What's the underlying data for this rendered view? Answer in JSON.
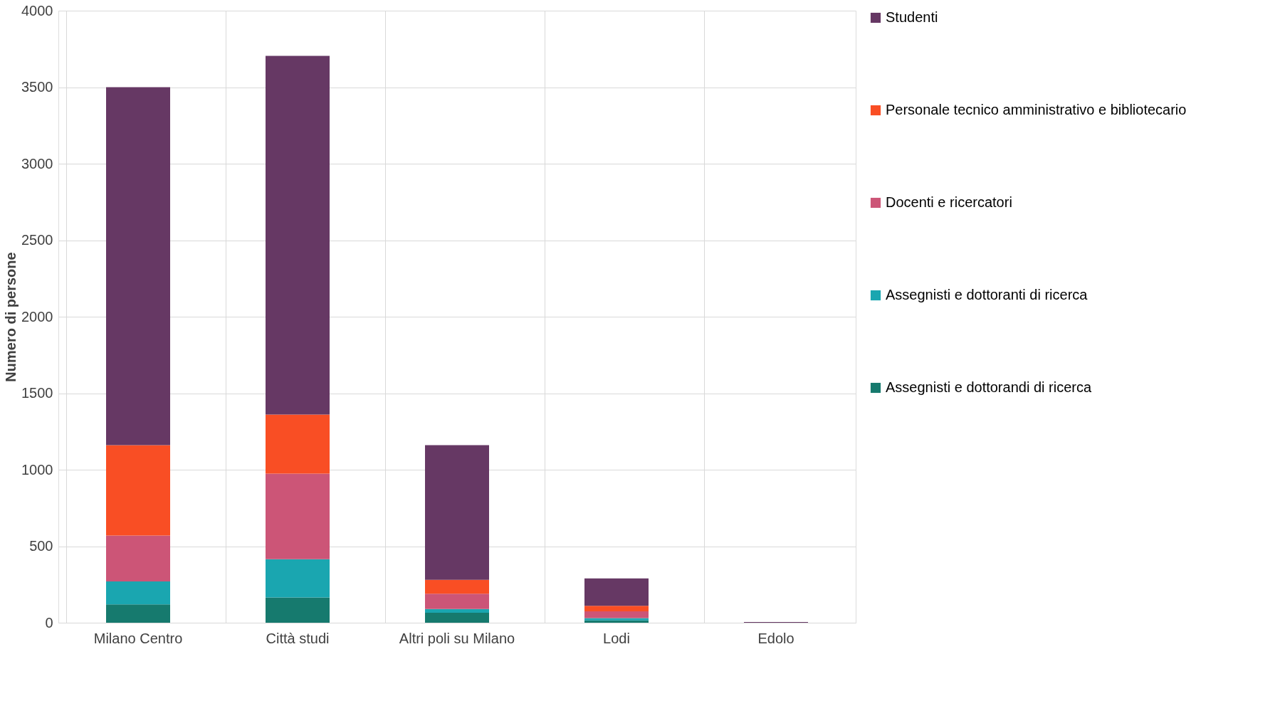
{
  "chart_data": {
    "type": "bar",
    "stacked": true,
    "ylabel": "Numero di persone",
    "categories": [
      "Milano Centro",
      "Città studi",
      "Altri poli su Milano",
      "Lodi",
      "Edolo"
    ],
    "series": [
      {
        "name": "Assegnisti e dottorandi di ricerca",
        "color": "#167a6e",
        "values": [
          120,
          165,
          65,
          15,
          0
        ]
      },
      {
        "name": "Assegnisti e dottoranti di ricerca",
        "color": "#1aa6b0",
        "values": [
          150,
          250,
          25,
          15,
          0
        ]
      },
      {
        "name": "Docenti e ricercatori",
        "color": "#cc5577",
        "values": [
          300,
          560,
          100,
          45,
          0
        ]
      },
      {
        "name": "Personale tecnico amministrativo e bibliotecario",
        "color": "#f94e24",
        "values": [
          590,
          385,
          90,
          35,
          0
        ]
      },
      {
        "name": "Studenti",
        "color": "#663864",
        "values": [
          2340,
          2345,
          880,
          180,
          5
        ]
      }
    ],
    "ylim": [
      0,
      4000
    ],
    "yticks": [
      0,
      500,
      1000,
      1500,
      2000,
      2500,
      3000,
      3500,
      4000
    ],
    "grid": true,
    "legend": "right"
  }
}
